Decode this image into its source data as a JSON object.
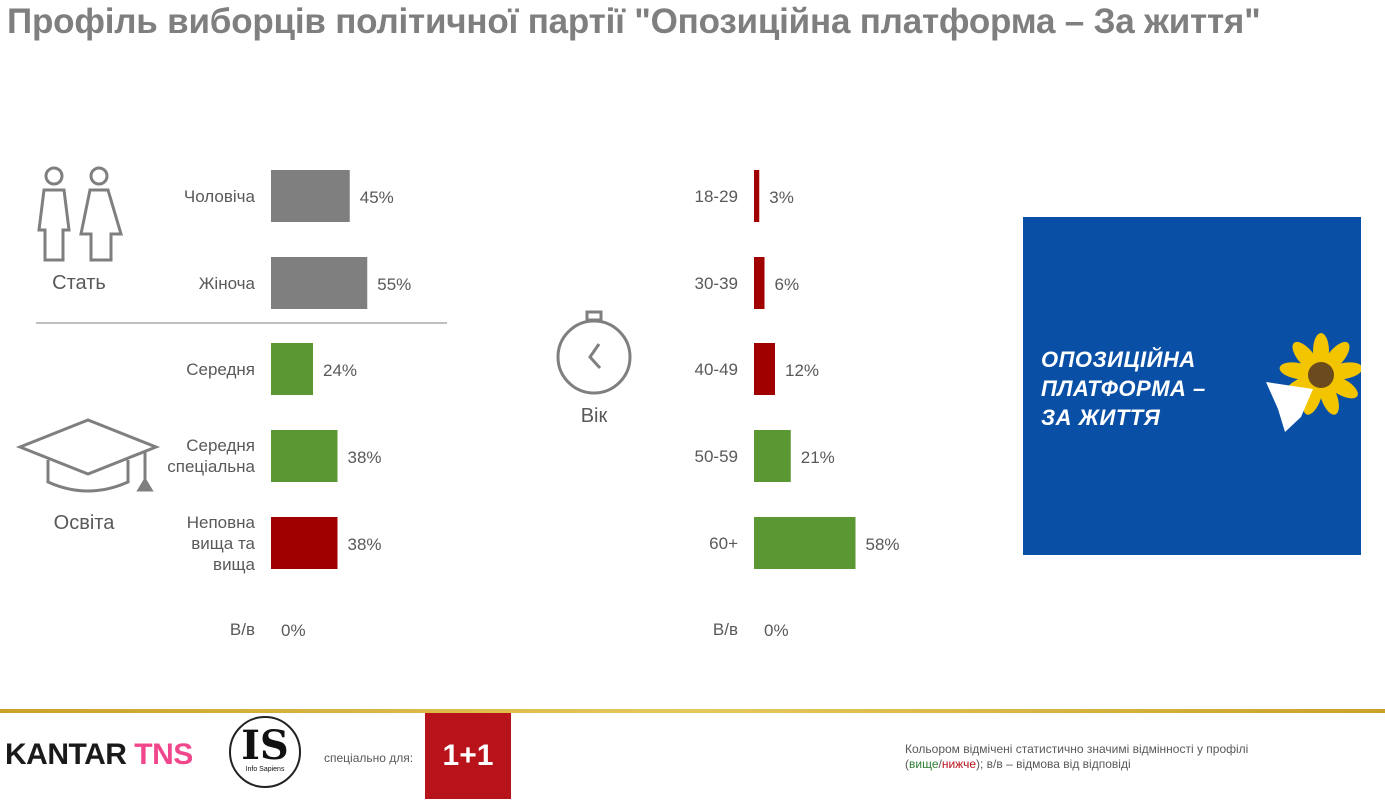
{
  "title": "Профіль виборців політичної партії \"Опозиційна платформа – За життя\"",
  "colors": {
    "neutral": "#7f7f7f",
    "higher": "#5b9732",
    "lower": "#a00000",
    "logo_bg": "#0a4fa6"
  },
  "sections": {
    "gender": {
      "label": "Стать",
      "icon": "people-icon"
    },
    "education": {
      "label": "Освіта",
      "icon": "graduation-cap-icon"
    },
    "age": {
      "label": "Вік",
      "icon": "stopwatch-icon"
    }
  },
  "chart_data": [
    {
      "type": "bar",
      "group": "Стать",
      "categories": [
        "Чоловіча",
        "Жіноча"
      ],
      "values": [
        45,
        55
      ],
      "value_labels": [
        "45%",
        "55%"
      ],
      "significance": [
        "neutral",
        "neutral"
      ]
    },
    {
      "type": "bar",
      "group": "Освіта",
      "categories": [
        "Середня",
        "Середня спеціальна",
        "Неповна вища та вища",
        "В/в"
      ],
      "values": [
        24,
        38,
        38,
        0
      ],
      "value_labels": [
        "24%",
        "38%",
        "38%",
        "0%"
      ],
      "significance": [
        "higher",
        "higher",
        "lower",
        "neutral"
      ]
    },
    {
      "type": "bar",
      "group": "Вік",
      "categories": [
        "18-29",
        "30-39",
        "40-49",
        "50-59",
        "60+",
        "В/в"
      ],
      "values": [
        3,
        6,
        12,
        21,
        58,
        0
      ],
      "value_labels": [
        "3%",
        "6%",
        "12%",
        "21%",
        "58%",
        "0%"
      ],
      "significance": [
        "lower",
        "lower",
        "lower",
        "higher",
        "higher",
        "neutral"
      ]
    }
  ],
  "party_logo": {
    "text": "ОПОЗИЦІЙНА\nПЛАТФОРМА –\nЗА ЖИТТЯ"
  },
  "footer": {
    "kantar_a": "KANTAR",
    "kantar_b": "TNS",
    "is_big": "IS",
    "is_small": "Info Sapiens",
    "special": "спеціально для:",
    "channel": "1+1",
    "note_1": "Кольором відмічені статистично значимі відмінності у профілі",
    "note_open": "(",
    "note_higher": "вище",
    "note_slash": "/",
    "note_lower": "нижче",
    "note_rest": "); в/в – відмова від відповіді"
  }
}
